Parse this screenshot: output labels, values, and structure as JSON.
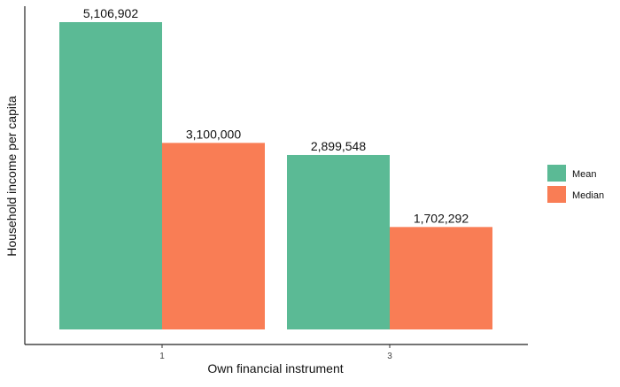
{
  "chart_data": {
    "type": "bar",
    "categories": [
      "1",
      "3"
    ],
    "series": [
      {
        "name": "Mean",
        "values": [
          5106902,
          2899548
        ],
        "labels": [
          "5,106,902",
          "2,899,548"
        ],
        "color": "#5BBA95"
      },
      {
        "name": "Median",
        "values": [
          3100000,
          1702292
        ],
        "labels": [
          "3,100,000",
          "1,702,292"
        ],
        "color": "#F97D55"
      }
    ],
    "xlabel": "Own financial instrument",
    "ylabel": "Household income per capita",
    "ylim": [
      0,
      5400000
    ],
    "grid": false,
    "legend_position": "right"
  }
}
